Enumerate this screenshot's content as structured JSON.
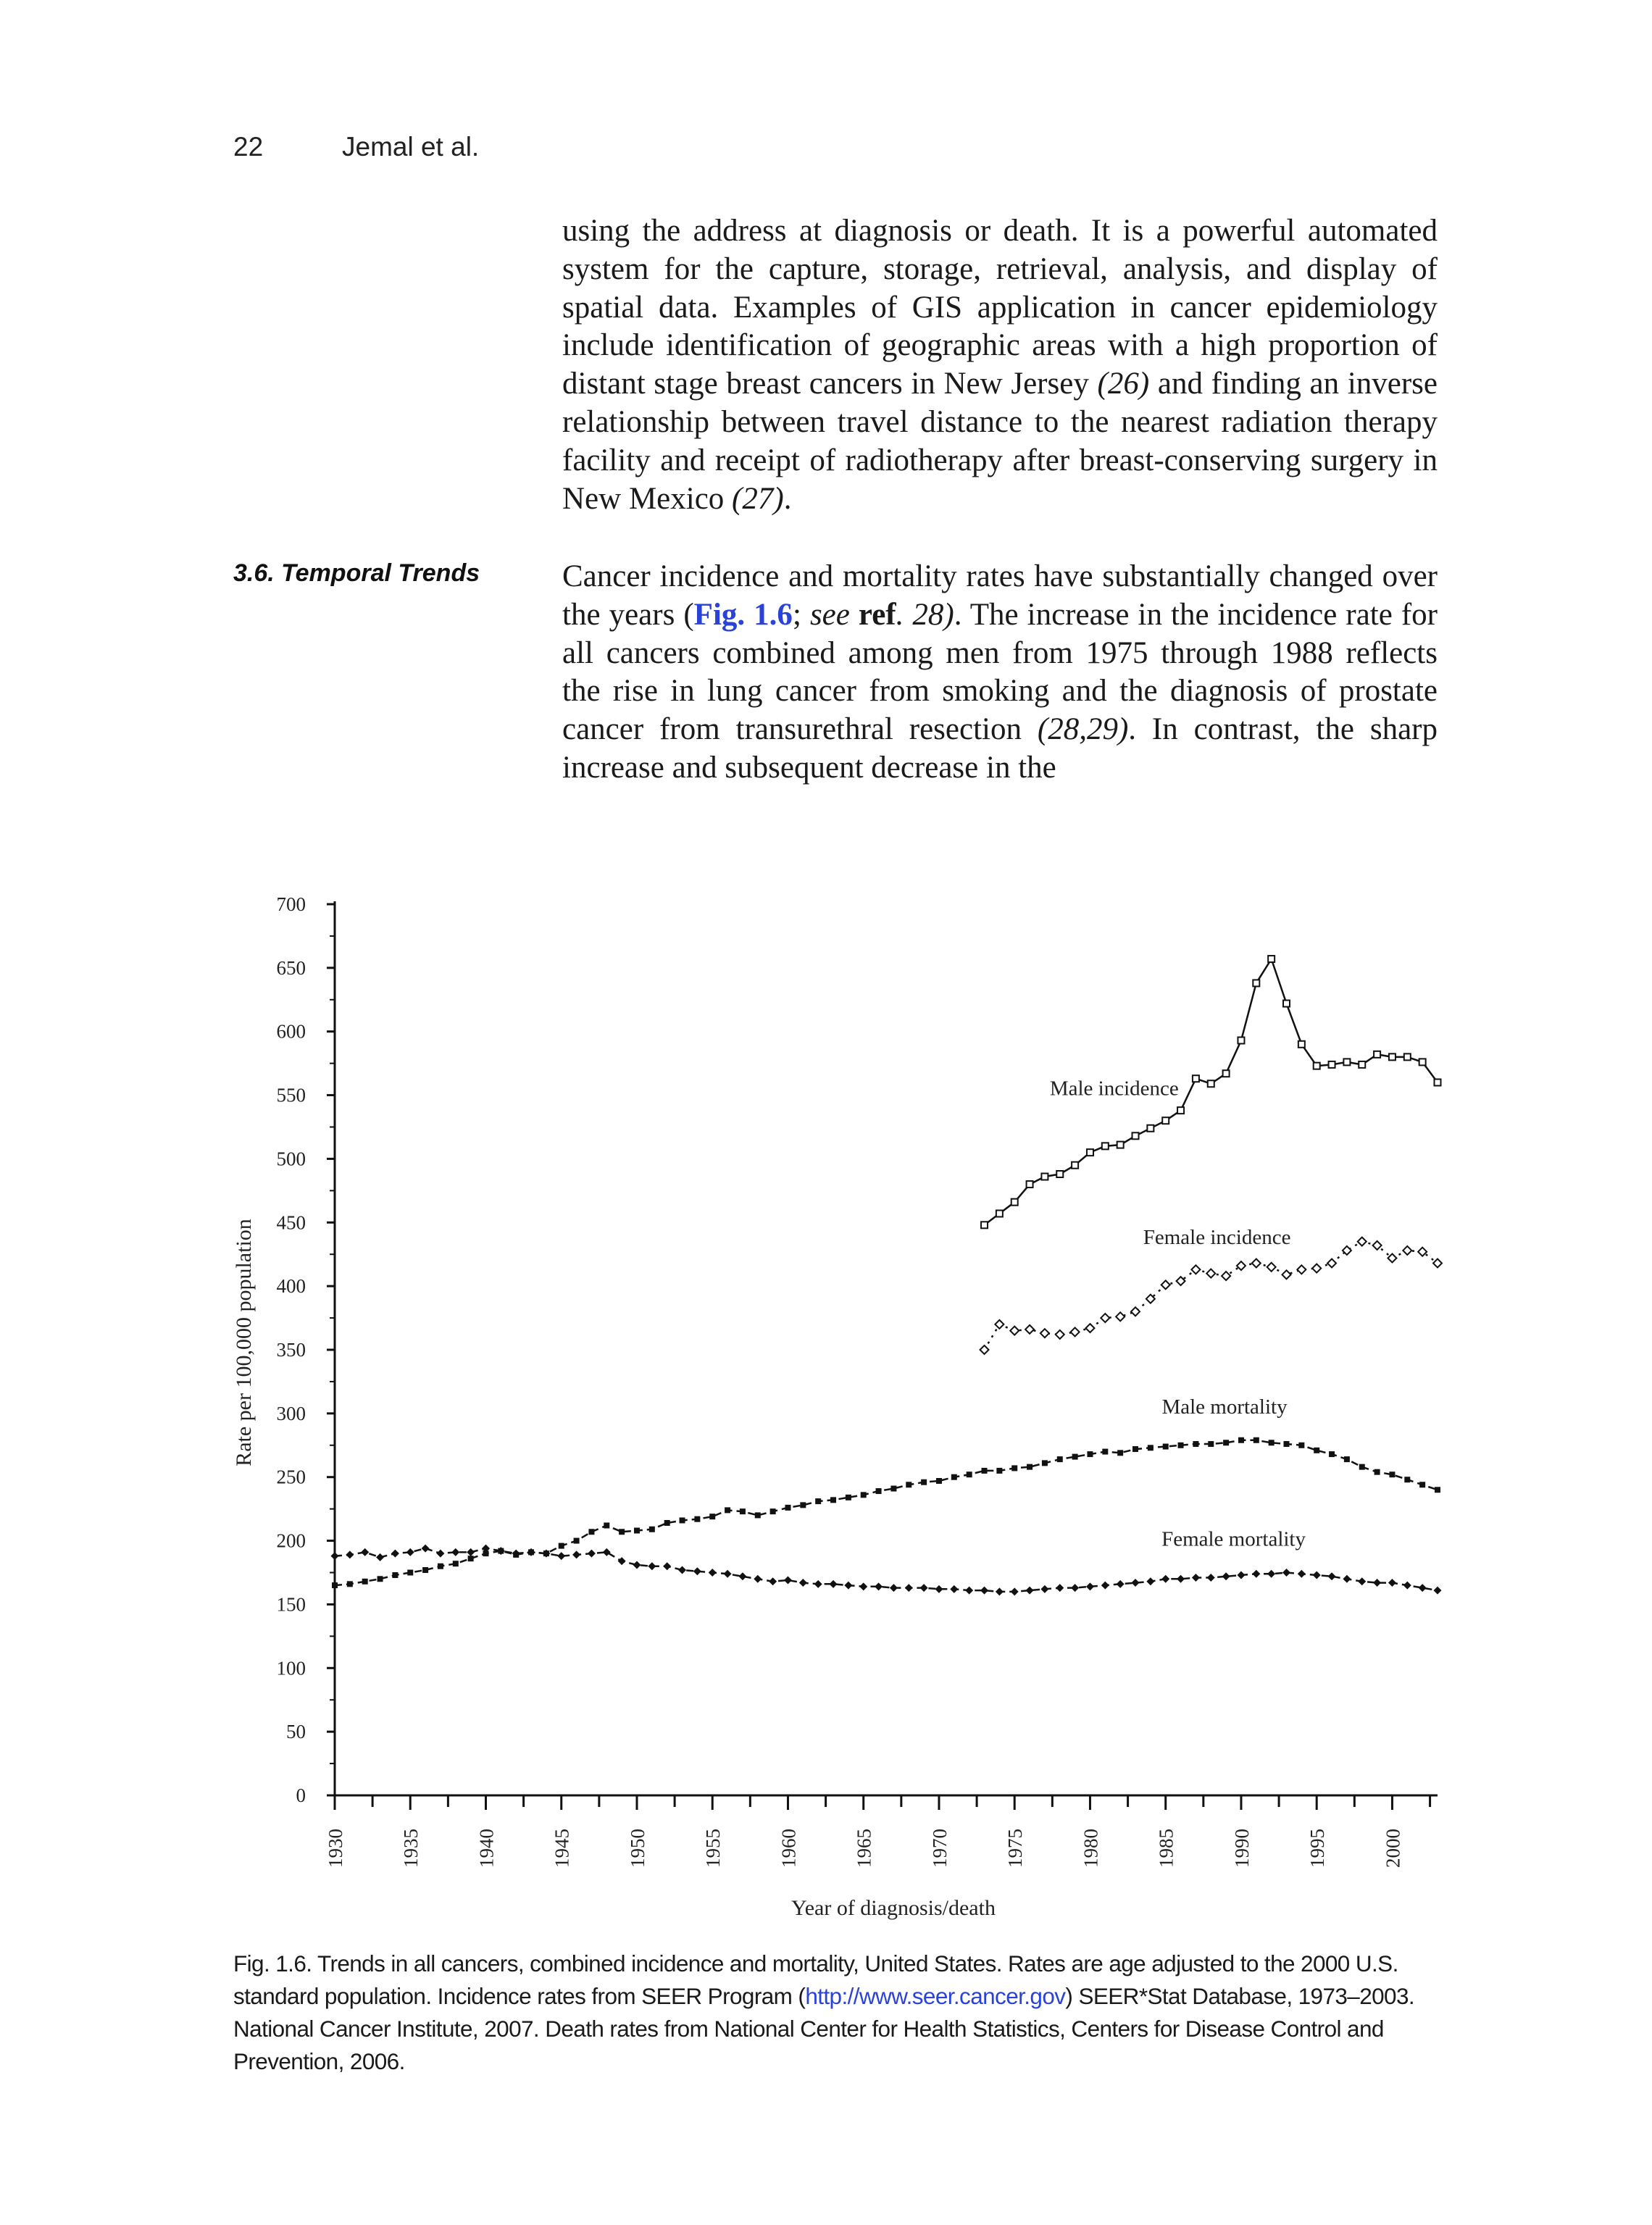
{
  "header": {
    "page_number": "22",
    "running_head": "Jemal et al."
  },
  "paragraph1": {
    "before": "using the address at diagnosis or death. It is a powerful automated system for the capture, storage, retrieval, analysis, and display of spatial data. Examples of GIS application in cancer epidemiology include identification of geographic areas with a high proportion of distant stage breast cancers in New Jersey ",
    "cite1": "(26)",
    "middle": " and finding an inverse relationship between travel distance to the nearest radiation therapy facility and receipt of radiotherapy after breast-conserving surgery in New Mexico ",
    "cite2": "(27)",
    "end": "."
  },
  "section": {
    "heading": "3.6. Temporal Trends"
  },
  "paragraph2": {
    "before": "Cancer incidence and mortality rates have substantially changed over the years (",
    "fig_ref": "Fig. 1.6",
    "sep": "; ",
    "see": "see",
    "ref": " ref",
    "ref_num": ". 28)",
    "after": ". The increase in the incidence rate for all cancers combined among men from 1975 through 1988 reflects the rise in lung cancer from smoking and the diagnosis of prostate cancer from transurethral resection ",
    "cite": "(28,29)",
    "end": ". In contrast, the sharp increase and subsequent decrease in the"
  },
  "chart_data": {
    "type": "line",
    "xlabel": "Year of diagnosis/death",
    "ylabel": "Rate per 100,000 population",
    "xlim": [
      1930,
      2003
    ],
    "ylim": [
      0,
      700
    ],
    "x_ticks": [
      "1930",
      "1935",
      "1940",
      "1945",
      "1950",
      "1955",
      "1960",
      "1965",
      "1970",
      "1975",
      "1980",
      "1985",
      "1990",
      "1995",
      "2000"
    ],
    "y_ticks": [
      "0",
      "50",
      "100",
      "150",
      "200",
      "250",
      "300",
      "350",
      "400",
      "450",
      "500",
      "550",
      "600",
      "650",
      "700"
    ],
    "grid": false,
    "series": [
      {
        "name": "Male incidence",
        "marker": "open-square",
        "x": [
          1973,
          1974,
          1975,
          1976,
          1977,
          1978,
          1979,
          1980,
          1981,
          1982,
          1983,
          1984,
          1985,
          1986,
          1987,
          1988,
          1989,
          1990,
          1991,
          1992,
          1993,
          1994,
          1995,
          1996,
          1997,
          1998,
          1999,
          2000,
          2001,
          2002,
          2003
        ],
        "values": [
          448,
          457,
          466,
          480,
          486,
          488,
          495,
          505,
          510,
          511,
          518,
          524,
          530,
          538,
          563,
          559,
          567,
          593,
          638,
          657,
          622,
          590,
          573,
          574,
          576,
          574,
          582,
          580,
          580,
          576,
          560
        ]
      },
      {
        "name": "Female incidence",
        "marker": "open-diamond",
        "x": [
          1973,
          1974,
          1975,
          1976,
          1977,
          1978,
          1979,
          1980,
          1981,
          1982,
          1983,
          1984,
          1985,
          1986,
          1987,
          1988,
          1989,
          1990,
          1991,
          1992,
          1993,
          1994,
          1995,
          1996,
          1997,
          1998,
          1999,
          2000,
          2001,
          2002,
          2003
        ],
        "values": [
          350,
          370,
          365,
          366,
          363,
          362,
          364,
          367,
          375,
          376,
          380,
          390,
          401,
          404,
          413,
          410,
          408,
          416,
          418,
          415,
          409,
          413,
          414,
          418,
          428,
          435,
          432,
          422,
          428,
          427,
          418
        ]
      },
      {
        "name": "Male mortality",
        "marker": "filled-square",
        "x": [
          1930,
          1931,
          1932,
          1933,
          1934,
          1935,
          1936,
          1937,
          1938,
          1939,
          1940,
          1941,
          1942,
          1943,
          1944,
          1945,
          1946,
          1947,
          1948,
          1949,
          1950,
          1951,
          1952,
          1953,
          1954,
          1955,
          1956,
          1957,
          1958,
          1959,
          1960,
          1961,
          1962,
          1963,
          1964,
          1965,
          1966,
          1967,
          1968,
          1969,
          1970,
          1971,
          1972,
          1973,
          1974,
          1975,
          1976,
          1977,
          1978,
          1979,
          1980,
          1981,
          1982,
          1983,
          1984,
          1985,
          1986,
          1987,
          1988,
          1989,
          1990,
          1991,
          1992,
          1993,
          1994,
          1995,
          1996,
          1997,
          1998,
          1999,
          2000,
          2001,
          2002,
          2003
        ],
        "values": [
          165,
          166,
          168,
          170,
          173,
          175,
          177,
          180,
          182,
          186,
          190,
          192,
          189,
          191,
          190,
          196,
          200,
          207,
          212,
          207,
          208,
          209,
          214,
          216,
          217,
          219,
          224,
          223,
          220,
          223,
          226,
          228,
          231,
          232,
          234,
          236,
          239,
          241,
          244,
          246,
          247,
          250,
          252,
          255,
          255,
          257,
          258,
          261,
          264,
          266,
          268,
          270,
          269,
          272,
          273,
          274,
          275,
          276,
          276,
          277,
          279,
          279,
          277,
          276,
          275,
          271,
          268,
          264,
          258,
          254,
          252,
          248,
          244,
          240
        ]
      },
      {
        "name": "Female mortality",
        "marker": "filled-diamond",
        "x": [
          1930,
          1931,
          1932,
          1933,
          1934,
          1935,
          1936,
          1937,
          1938,
          1939,
          1940,
          1941,
          1942,
          1943,
          1944,
          1945,
          1946,
          1947,
          1948,
          1949,
          1950,
          1951,
          1952,
          1953,
          1954,
          1955,
          1956,
          1957,
          1958,
          1959,
          1960,
          1961,
          1962,
          1963,
          1964,
          1965,
          1966,
          1967,
          1968,
          1969,
          1970,
          1971,
          1972,
          1973,
          1974,
          1975,
          1976,
          1977,
          1978,
          1979,
          1980,
          1981,
          1982,
          1983,
          1984,
          1985,
          1986,
          1987,
          1988,
          1989,
          1990,
          1991,
          1992,
          1993,
          1994,
          1995,
          1996,
          1997,
          1998,
          1999,
          2000,
          2001,
          2002,
          2003
        ],
        "values": [
          188,
          189,
          191,
          187,
          190,
          191,
          194,
          190,
          191,
          191,
          194,
          192,
          190,
          191,
          190,
          188,
          189,
          190,
          191,
          184,
          181,
          180,
          180,
          177,
          176,
          175,
          174,
          172,
          170,
          168,
          169,
          167,
          166,
          166,
          165,
          164,
          164,
          163,
          163,
          163,
          162,
          162,
          161,
          161,
          160,
          160,
          161,
          162,
          163,
          163,
          164,
          165,
          166,
          167,
          168,
          170,
          170,
          171,
          171,
          172,
          173,
          174,
          174,
          175,
          174,
          173,
          172,
          170,
          168,
          167,
          167,
          165,
          163,
          161
        ]
      }
    ]
  },
  "caption": {
    "before": "Fig. 1.6. Trends in all cancers, combined incidence and mortality, United States. Rates are age adjusted to the 2000 U.S. standard population. Incidence rates from SEER Program (",
    "link": "http://www.seer.cancer.gov",
    "after": ") SEER*Stat Database, 1973–2003. National Cancer Institute, 2007. Death rates from National Center for Health Statistics, Centers for Disease Control and Prevention, 2006."
  }
}
